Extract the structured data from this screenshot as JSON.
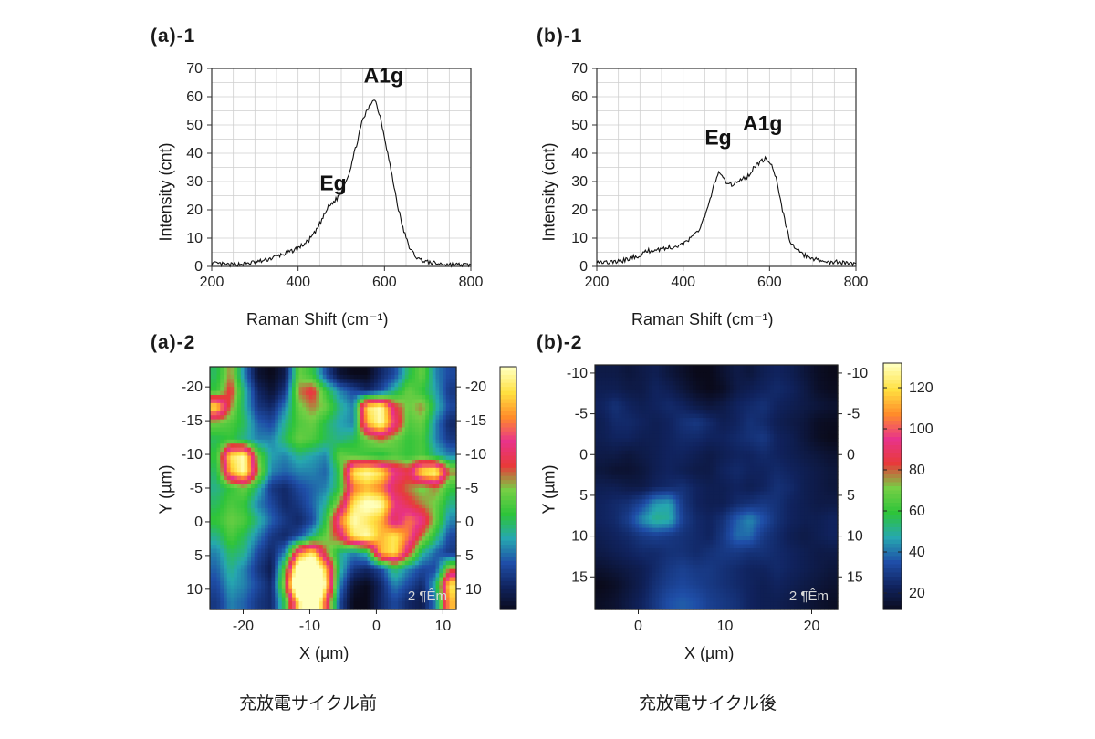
{
  "chart_data": [
    {
      "panel": "(a)-1",
      "type": "line",
      "xlabel": "Raman Shift (cm⁻¹)",
      "ylabel": "Intensity (cnt)",
      "xlim": [
        200,
        800
      ],
      "ylim": [
        0,
        70
      ],
      "xticks": [
        200,
        400,
        600,
        800
      ],
      "yticks": [
        0,
        10,
        20,
        30,
        40,
        50,
        60,
        70
      ],
      "grid": true,
      "x": [
        200,
        220,
        240,
        260,
        280,
        300,
        320,
        340,
        360,
        380,
        400,
        420,
        440,
        460,
        470,
        480,
        490,
        500,
        510,
        520,
        530,
        540,
        550,
        560,
        570,
        575,
        580,
        590,
        600,
        610,
        620,
        630,
        640,
        650,
        660,
        670,
        680,
        690,
        700,
        720,
        740,
        760,
        780,
        800
      ],
      "y": [
        1,
        0.8,
        0.5,
        0.7,
        1,
        1.5,
        2,
        3,
        4,
        5,
        6.5,
        8.5,
        12,
        18,
        21,
        22.5,
        24,
        26.5,
        30,
        34,
        40,
        46,
        52,
        55,
        58,
        59.5,
        58,
        53,
        46,
        38,
        30,
        22,
        15,
        10,
        6,
        4,
        2.5,
        2,
        1.5,
        1,
        0.8,
        0.6,
        0.5,
        0.5
      ],
      "annotations": [
        {
          "text": "Eg",
          "x": 450,
          "y": 27
        },
        {
          "text": "A1g",
          "x": 552,
          "y": 65
        }
      ]
    },
    {
      "panel": "(b)-1",
      "type": "line",
      "xlabel": "Raman Shift (cm⁻¹)",
      "ylabel": "Intensity (cnt)",
      "xlim": [
        200,
        800
      ],
      "ylim": [
        0,
        70
      ],
      "xticks": [
        200,
        400,
        600,
        800
      ],
      "yticks": [
        0,
        10,
        20,
        30,
        40,
        50,
        60,
        70
      ],
      "grid": true,
      "x": [
        200,
        220,
        240,
        260,
        280,
        300,
        320,
        340,
        360,
        380,
        400,
        420,
        440,
        460,
        470,
        480,
        490,
        500,
        510,
        520,
        530,
        540,
        550,
        560,
        570,
        580,
        590,
        600,
        610,
        620,
        630,
        640,
        650,
        660,
        680,
        700,
        720,
        740,
        760,
        780,
        800
      ],
      "y": [
        2,
        1.5,
        1.5,
        2,
        3,
        4,
        5.5,
        6,
        6.5,
        7,
        8,
        10,
        14,
        22,
        28,
        33,
        32,
        30,
        29,
        29,
        30,
        31,
        32,
        34,
        36,
        37,
        38,
        37,
        34,
        28,
        20,
        13,
        8,
        6,
        4,
        2.5,
        2,
        1.5,
        1.5,
        1,
        1
      ],
      "annotations": [
        {
          "text": "Eg",
          "x": 450,
          "y": 43
        },
        {
          "text": "A1g",
          "x": 538,
          "y": 48
        }
      ]
    },
    {
      "panel": "(a)-2",
      "type": "heatmap",
      "xlabel": "X (µm)",
      "ylabel": "Y (µm)",
      "xlim": [
        -25,
        12
      ],
      "ylim": [
        -23,
        13
      ],
      "xticks": [
        -20,
        -10,
        0,
        10
      ],
      "yticks": [
        -20,
        -15,
        -10,
        -5,
        0,
        5,
        10
      ],
      "colorbar": {
        "vmin": 5,
        "vmax": 32,
        "ticks": [],
        "colors": [
          "#0a0a1a",
          "#10235e",
          "#1f4ea8",
          "#26a7b0",
          "#2ec43a",
          "#76cf45",
          "#e83a3a",
          "#e8338a",
          "#ff8c2a",
          "#ffe040",
          "#ffffbb"
        ]
      },
      "scale_bar": "2 ¶Êm",
      "rows": [
        [
          15,
          20,
          12,
          6,
          5,
          7,
          18,
          16,
          10,
          6,
          5,
          5,
          8,
          10,
          15,
          18,
          12,
          10
        ],
        [
          16,
          22,
          14,
          8,
          6,
          9,
          20,
          22,
          16,
          12,
          10,
          8,
          10,
          14,
          18,
          16,
          13,
          9
        ],
        [
          30,
          20,
          14,
          9,
          8,
          12,
          18,
          20,
          18,
          14,
          12,
          30,
          32,
          22,
          18,
          20,
          14,
          10
        ],
        [
          18,
          17,
          15,
          11,
          10,
          14,
          17,
          18,
          15,
          13,
          12,
          28,
          32,
          24,
          17,
          18,
          12,
          8
        ],
        [
          15,
          16,
          14,
          12,
          12,
          15,
          18,
          17,
          15,
          14,
          15,
          18,
          20,
          18,
          16,
          17,
          12,
          9
        ],
        [
          16,
          30,
          32,
          18,
          13,
          12,
          14,
          13,
          12,
          18,
          17,
          16,
          15,
          17,
          16,
          17,
          14,
          12
        ],
        [
          15,
          28,
          32,
          20,
          12,
          11,
          12,
          12,
          11,
          16,
          30,
          32,
          30,
          24,
          22,
          30,
          32,
          20
        ],
        [
          14,
          16,
          18,
          14,
          9,
          8,
          10,
          11,
          12,
          16,
          26,
          28,
          26,
          22,
          20,
          18,
          20,
          16
        ],
        [
          15,
          17,
          16,
          12,
          10,
          8,
          9,
          11,
          14,
          20,
          30,
          33,
          32,
          24,
          22,
          20,
          18,
          14
        ],
        [
          16,
          18,
          17,
          14,
          11,
          9,
          8,
          10,
          16,
          26,
          32,
          30,
          28,
          22,
          26,
          24,
          18,
          12
        ],
        [
          14,
          17,
          15,
          12,
          9,
          8,
          10,
          14,
          18,
          22,
          30,
          32,
          28,
          30,
          26,
          20,
          15,
          10
        ],
        [
          12,
          15,
          14,
          10,
          8,
          12,
          26,
          30,
          20,
          14,
          12,
          14,
          28,
          30,
          22,
          14,
          11,
          9
        ],
        [
          11,
          14,
          12,
          9,
          7,
          18,
          36,
          38,
          28,
          14,
          9,
          8,
          10,
          15,
          12,
          10,
          10,
          20
        ],
        [
          10,
          13,
          12,
          10,
          8,
          20,
          42,
          46,
          30,
          12,
          6,
          5,
          8,
          12,
          10,
          8,
          14,
          30
        ],
        [
          9,
          12,
          11,
          9,
          8,
          16,
          30,
          40,
          24,
          10,
          5,
          5,
          8,
          10,
          8,
          7,
          12,
          28
        ]
      ]
    },
    {
      "panel": "(b)-2",
      "type": "heatmap",
      "xlabel": "X (µm)",
      "ylabel": "Y (µm)",
      "xlim": [
        -5,
        23
      ],
      "ylim": [
        -11,
        19
      ],
      "xticks": [
        0,
        10,
        20
      ],
      "yticks": [
        -10,
        -5,
        0,
        5,
        10,
        15
      ],
      "colorbar": {
        "vmin": 12,
        "vmax": 132,
        "ticks": [
          20,
          40,
          60,
          80,
          100,
          120
        ],
        "colors": [
          "#0a0a1a",
          "#10235e",
          "#1f4ea8",
          "#26a7b0",
          "#2ec43a",
          "#76cf45",
          "#e83a3a",
          "#e8338a",
          "#ff8c2a",
          "#ffe040",
          "#ffffbb"
        ]
      },
      "scale_bar": "2 ¶Êm",
      "rows": [
        [
          20,
          20,
          18,
          20,
          22,
          18,
          15,
          12,
          12,
          16,
          20,
          18,
          22,
          24,
          22,
          18,
          14,
          12
        ],
        [
          22,
          22,
          20,
          20,
          24,
          22,
          18,
          14,
          12,
          14,
          20,
          22,
          24,
          26,
          24,
          20,
          15,
          13
        ],
        [
          24,
          28,
          24,
          22,
          24,
          26,
          24,
          20,
          18,
          20,
          24,
          26,
          28,
          24,
          22,
          20,
          18,
          16
        ],
        [
          22,
          26,
          26,
          24,
          22,
          24,
          28,
          30,
          26,
          22,
          24,
          28,
          26,
          22,
          20,
          18,
          14,
          13
        ],
        [
          22,
          24,
          24,
          22,
          22,
          24,
          26,
          26,
          24,
          24,
          26,
          28,
          30,
          24,
          22,
          18,
          14,
          12
        ],
        [
          20,
          20,
          18,
          20,
          22,
          24,
          24,
          22,
          20,
          22,
          24,
          24,
          26,
          24,
          22,
          20,
          18,
          16
        ],
        [
          18,
          16,
          16,
          18,
          22,
          24,
          22,
          20,
          20,
          24,
          26,
          24,
          24,
          26,
          24,
          22,
          20,
          18
        ],
        [
          22,
          22,
          20,
          20,
          24,
          26,
          28,
          24,
          22,
          22,
          24,
          22,
          24,
          28,
          26,
          22,
          20,
          18
        ],
        [
          24,
          26,
          28,
          34,
          46,
          48,
          30,
          24,
          22,
          22,
          26,
          28,
          30,
          28,
          24,
          22,
          20,
          20
        ],
        [
          24,
          26,
          32,
          44,
          52,
          50,
          32,
          26,
          24,
          28,
          38,
          44,
          36,
          28,
          24,
          22,
          22,
          24
        ],
        [
          22,
          24,
          26,
          30,
          32,
          30,
          28,
          26,
          24,
          30,
          40,
          40,
          30,
          26,
          22,
          20,
          22,
          24
        ],
        [
          20,
          22,
          24,
          26,
          26,
          28,
          28,
          26,
          28,
          30,
          30,
          28,
          28,
          26,
          24,
          22,
          20,
          20
        ],
        [
          16,
          18,
          20,
          22,
          26,
          30,
          32,
          30,
          30,
          28,
          26,
          24,
          24,
          26,
          24,
          22,
          20,
          18
        ],
        [
          12,
          14,
          18,
          22,
          28,
          32,
          34,
          32,
          30,
          28,
          26,
          24,
          22,
          24,
          22,
          20,
          18,
          16
        ],
        [
          14,
          16,
          20,
          24,
          30,
          36,
          38,
          36,
          32,
          30,
          28,
          24,
          22,
          22,
          20,
          18,
          16,
          14
        ]
      ]
    }
  ],
  "panel_labels": {
    "a1": "(a)-1",
    "b1": "(b)-1",
    "a2": "(a)-2",
    "b2": "(b)-2"
  },
  "axis_titles": {
    "intensity": "Intensity (cnt)",
    "raman_shift": "Raman Shift (cm⁻¹)",
    "map_y": "Y (µm)",
    "map_x": "X (µm)"
  },
  "captions": {
    "before": "充放電サイクル前",
    "after": "充放電サイクル後"
  }
}
